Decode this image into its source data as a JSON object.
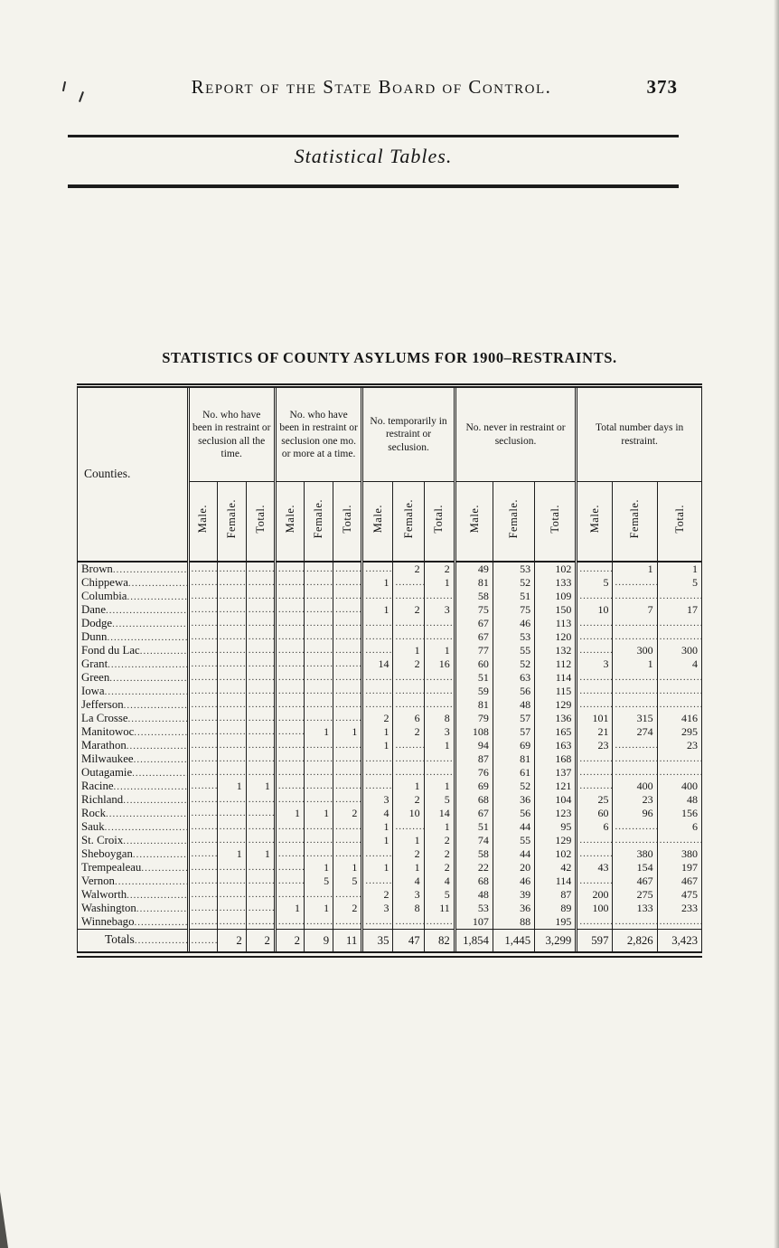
{
  "page": {
    "header_title": "Report of the State Board of Control.",
    "page_number": "373",
    "section_title": "Statistical Tables.",
    "table_title": "STATISTICS OF COUNTY ASYLUMS FOR 1900–RESTRAINTS."
  },
  "table": {
    "counties_header": "Counties.",
    "empty_marker": ".",
    "group_headers": [
      "No. who have been in restraint or seclusion all the time.",
      "No. who have been in restraint or seclusion one mo. or more at a time.",
      "No. temporarily in restraint or seclusion.",
      "No. never in restraint or seclusion.",
      "Total number days in restraint."
    ],
    "sub_headers": [
      "Male.",
      "Female.",
      "Total."
    ],
    "rows": [
      {
        "county": "Brown",
        "values": [
          "",
          "",
          "",
          "",
          "",
          "",
          "",
          "2",
          "2",
          "49",
          "53",
          "102",
          "",
          "1",
          "1"
        ]
      },
      {
        "county": "Chippewa",
        "values": [
          "",
          "",
          "",
          "",
          "",
          "",
          "1",
          "",
          "1",
          "81",
          "52",
          "133",
          "5",
          "",
          "5"
        ]
      },
      {
        "county": "Columbia",
        "values": [
          "",
          "",
          "",
          "",
          "",
          "",
          "",
          "",
          "",
          "58",
          "51",
          "109",
          "",
          "",
          ""
        ]
      },
      {
        "county": "Dane",
        "values": [
          "",
          "",
          "",
          "",
          "",
          "",
          "1",
          "2",
          "3",
          "75",
          "75",
          "150",
          "10",
          "7",
          "17"
        ]
      },
      {
        "county": "Dodge",
        "values": [
          "",
          "",
          "",
          "",
          "",
          "",
          "",
          "",
          "",
          "67",
          "46",
          "113",
          "",
          "",
          ""
        ]
      },
      {
        "county": "Dunn",
        "values": [
          "",
          "",
          "",
          "",
          "",
          "",
          "",
          "",
          "",
          "67",
          "53",
          "120",
          "",
          "",
          ""
        ]
      },
      {
        "county": "Fond du Lac",
        "values": [
          "",
          "",
          "",
          "",
          "",
          "",
          "",
          "1",
          "1",
          "77",
          "55",
          "132",
          "",
          "300",
          "300"
        ]
      },
      {
        "county": "Grant",
        "values": [
          "",
          "",
          "",
          "",
          "",
          "",
          "14",
          "2",
          "16",
          "60",
          "52",
          "112",
          "3",
          "1",
          "4"
        ]
      },
      {
        "county": "Green",
        "values": [
          "",
          "",
          "",
          "",
          "",
          "",
          "",
          "",
          "",
          "51",
          "63",
          "114",
          "",
          "",
          ""
        ]
      },
      {
        "county": "Iowa",
        "values": [
          "",
          "",
          "",
          "",
          "",
          "",
          "",
          "",
          "",
          "59",
          "56",
          "115",
          "",
          "",
          ""
        ]
      },
      {
        "county": "Jefferson",
        "values": [
          "",
          "",
          "",
          "",
          "",
          "",
          "",
          "",
          "",
          "81",
          "48",
          "129",
          "",
          "",
          ""
        ]
      },
      {
        "county": "La Crosse",
        "values": [
          "",
          "",
          "",
          "",
          "",
          "",
          "2",
          "6",
          "8",
          "79",
          "57",
          "136",
          "101",
          "315",
          "416"
        ]
      },
      {
        "county": "Manitowoc",
        "values": [
          "",
          "",
          "",
          "",
          "1",
          "1",
          "1",
          "2",
          "3",
          "108",
          "57",
          "165",
          "21",
          "274",
          "295"
        ]
      },
      {
        "county": "Marathon",
        "values": [
          "",
          "",
          "",
          "",
          "",
          "",
          "1",
          "",
          "1",
          "94",
          "69",
          "163",
          "23",
          "",
          "23"
        ]
      },
      {
        "county": "Milwaukee",
        "values": [
          "",
          "",
          "",
          "",
          "",
          "",
          "",
          "",
          "",
          "87",
          "81",
          "168",
          "",
          "",
          ""
        ]
      },
      {
        "county": "Outagamie",
        "values": [
          "",
          "",
          "",
          "",
          "",
          "",
          "",
          "",
          "",
          "76",
          "61",
          "137",
          "",
          "",
          ""
        ]
      },
      {
        "county": "Racine",
        "values": [
          "",
          "1",
          "1",
          "",
          "",
          "",
          "",
          "1",
          "1",
          "69",
          "52",
          "121",
          "",
          "400",
          "400"
        ]
      },
      {
        "county": "Richland",
        "values": [
          "",
          "",
          "",
          "",
          "",
          "",
          "3",
          "2",
          "5",
          "68",
          "36",
          "104",
          "25",
          "23",
          "48"
        ]
      },
      {
        "county": "Rock",
        "values": [
          "",
          "",
          "",
          "1",
          "1",
          "2",
          "4",
          "10",
          "14",
          "67",
          "56",
          "123",
          "60",
          "96",
          "156"
        ]
      },
      {
        "county": "Sauk",
        "values": [
          "",
          "",
          "",
          "",
          "",
          "",
          "1",
          "",
          "1",
          "51",
          "44",
          "95",
          "6",
          "",
          "6"
        ]
      },
      {
        "county": "St. Croix",
        "values": [
          "",
          "",
          "",
          "",
          "",
          "",
          "1",
          "1",
          "2",
          "74",
          "55",
          "129",
          "",
          "",
          ""
        ]
      },
      {
        "county": "Sheboygan",
        "values": [
          "",
          "1",
          "1",
          "",
          "",
          "",
          "",
          "2",
          "2",
          "58",
          "44",
          "102",
          "",
          "380",
          "380"
        ]
      },
      {
        "county": "Trempealeau",
        "values": [
          "",
          "",
          "",
          "",
          "1",
          "1",
          "1",
          "1",
          "2",
          "22",
          "20",
          "42",
          "43",
          "154",
          "197"
        ]
      },
      {
        "county": "Vernon",
        "values": [
          "",
          "",
          "",
          "",
          "5",
          "5",
          "",
          "4",
          "4",
          "68",
          "46",
          "114",
          "",
          "467",
          "467"
        ]
      },
      {
        "county": "Walworth",
        "values": [
          "",
          "",
          "",
          "",
          "",
          "",
          "2",
          "3",
          "5",
          "48",
          "39",
          "87",
          "200",
          "275",
          "475"
        ]
      },
      {
        "county": "Washington",
        "values": [
          "",
          "",
          "",
          "1",
          "1",
          "2",
          "3",
          "8",
          "11",
          "53",
          "36",
          "89",
          "100",
          "133",
          "233"
        ]
      },
      {
        "county": "Winnebago",
        "values": [
          "",
          "",
          "",
          "",
          "",
          "",
          "",
          "",
          "",
          "107",
          "88",
          "195",
          "",
          "",
          ""
        ]
      }
    ],
    "totals": {
      "label": "Totals",
      "values": [
        "",
        "2",
        "2",
        "2",
        "9",
        "11",
        "35",
        "47",
        "82",
        "1,854",
        "1,445",
        "3,299",
        "597",
        "2,826",
        "3,423"
      ]
    }
  }
}
